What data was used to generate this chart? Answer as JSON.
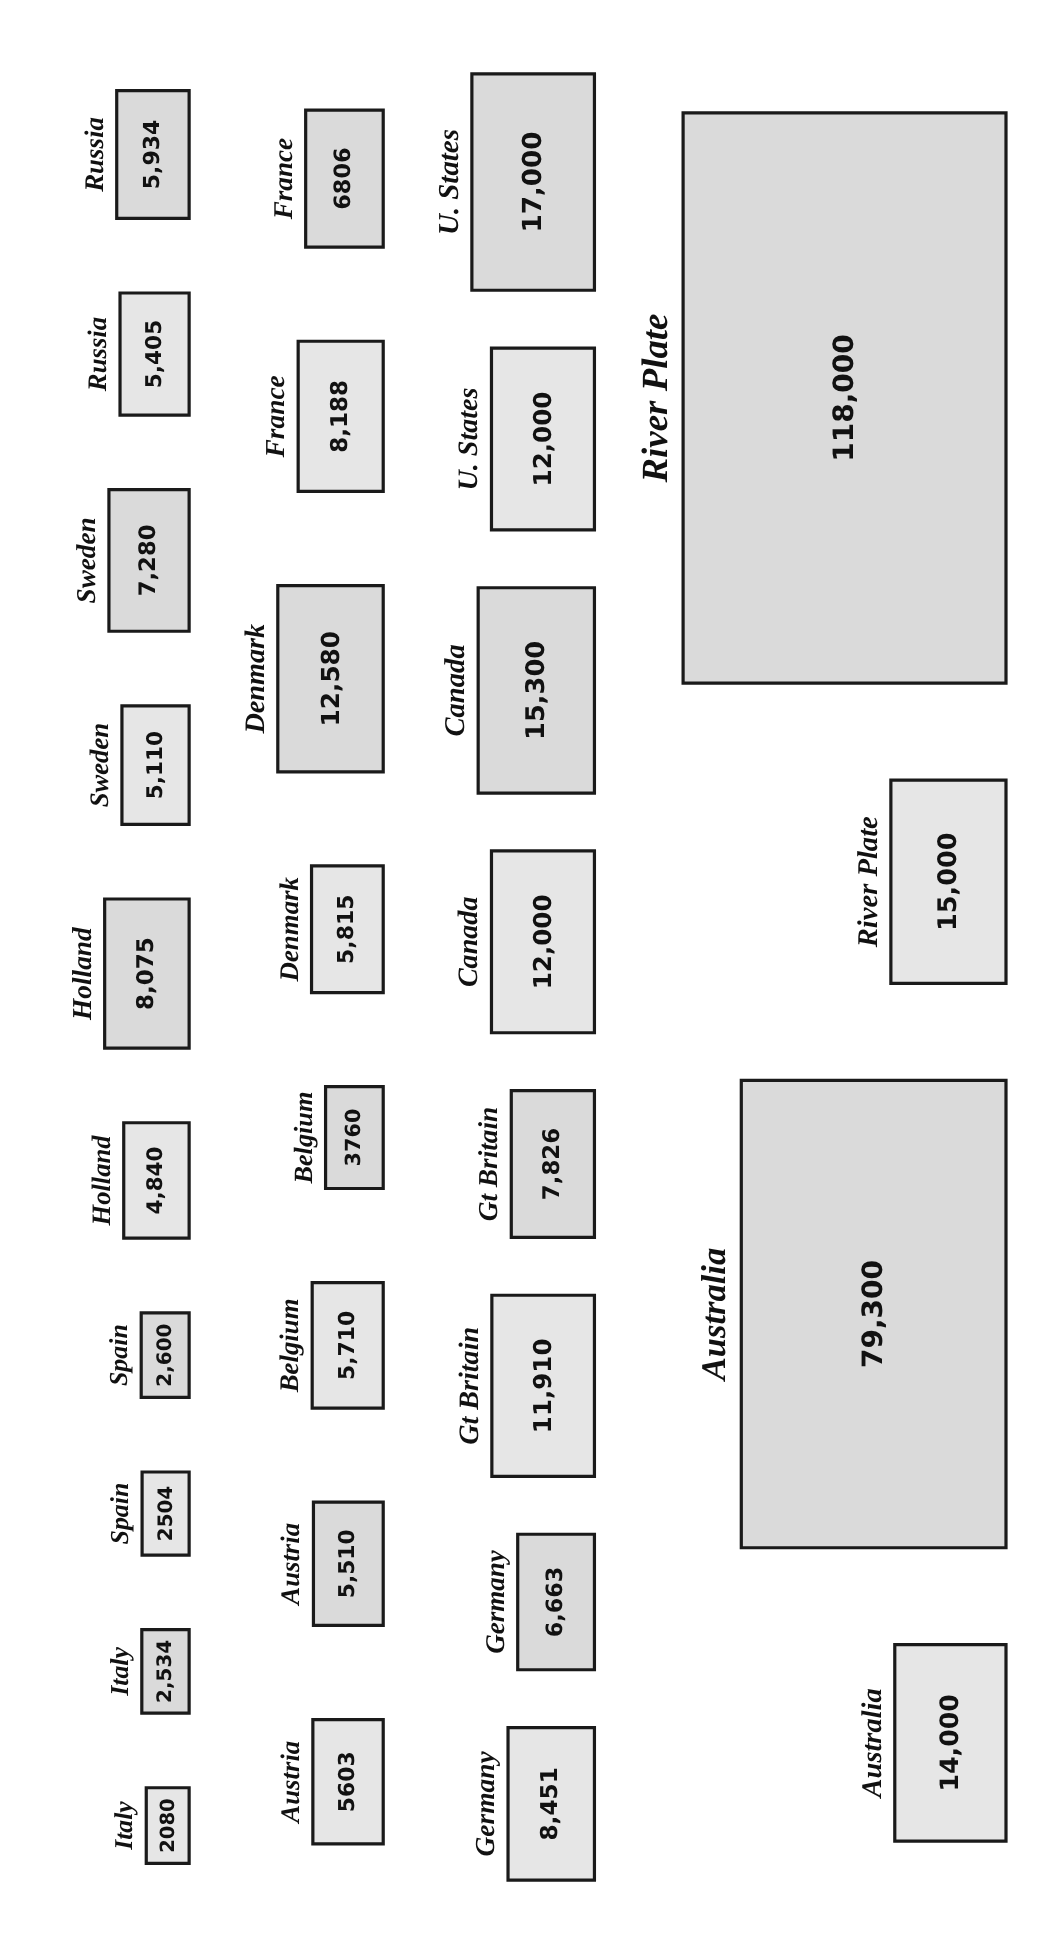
{
  "chart_data": {
    "type": "other",
    "categories": [
      "Italy",
      "Spain",
      "Holland",
      "Sweden",
      "Russia",
      "Austria",
      "Belgium",
      "Denmark",
      "France",
      "Germany",
      "Gt Britain",
      "Canada",
      "U. States",
      "Australia",
      "River Plate"
    ],
    "series": [
      {
        "color": "#e6e6e6",
        "values": [
          2080,
          2504,
          4840,
          5110,
          5405,
          5603,
          5710,
          5815,
          8188,
          8451,
          11910,
          12000,
          12000,
          14000,
          15000
        ],
        "value_labels": [
          "2080",
          "2504",
          "4,840",
          "5,110",
          "5,405",
          "5603",
          "5,710",
          "5,815",
          "8,188",
          "8,451",
          "11,910",
          "12,000",
          "12,000",
          "14,000",
          "15,000"
        ]
      },
      {
        "color": "#dadada",
        "values": [
          2534,
          2600,
          8075,
          7280,
          5934,
          5510,
          3760,
          12580,
          6806,
          6663,
          7826,
          15300,
          17000,
          79300,
          118000
        ],
        "value_labels": [
          "2,534",
          "2,600",
          "8,075",
          "7,280",
          "5,934",
          "5,510",
          "3760",
          "12,580",
          "6806",
          "6,663",
          "7,826",
          "15,300",
          "17,000",
          "79,300",
          "118,000"
        ]
      }
    ]
  }
}
